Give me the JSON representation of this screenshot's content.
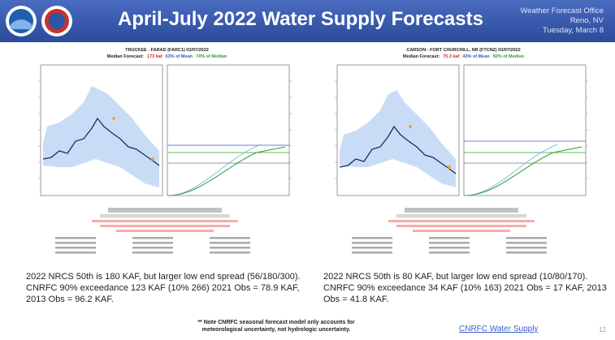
{
  "header": {
    "title": "April-July 2022 Water Supply Forecasts",
    "office": [
      "Weather Forecast Office",
      "Reno, NV",
      "Tuesday, March 8"
    ]
  },
  "panels": [
    {
      "chart_title": "TRUCKEE - FARAD (FARC1) 03/07/2022",
      "median_forecast": [
        "Median Forecast:",
        "173 kaf",
        "63% of Mean",
        "74% of Median"
      ],
      "caption": [
        "2022 NRCS 50th is 180 KAF, but larger low end spread (56/180/300).",
        "CNRFC 90% exceedance 123 KAF (10% 266)  2021 Obs = 78.9 KAF,",
        "2013 Obs = 96.2 KAF."
      ]
    },
    {
      "chart_title": "CARSON - FORT CHURCHILL, NR (FTCN2) 03/07/2022",
      "median_forecast": [
        "Median Forecast:",
        "75.3 kaf",
        "43% of Mean",
        "50% of Median"
      ],
      "caption": [
        "2022 NRCS 50th is 80 KAF, but larger low end  spread (10/80/170).",
        "CNRFC 90% exceedance 34 KAF (10% 163)  2021 Obs = 17 KAF, 2013",
        "Obs = 41.8 KAF."
      ]
    }
  ],
  "footnote": [
    "** Note CNRFC seasonal forecast model only accounts for",
    "meteorological uncertainty, not hydrologic uncertainty."
  ],
  "link": "CNRFC Water Supply",
  "page_number": "12"
}
